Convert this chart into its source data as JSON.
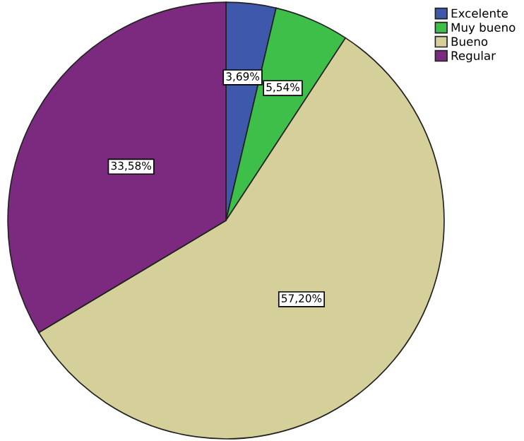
{
  "chart_data": {
    "type": "pie",
    "categories": [
      "Excelente",
      "Muy bueno",
      "Bueno",
      "Regular"
    ],
    "values": [
      3.69,
      5.54,
      57.2,
      33.58
    ],
    "colors": [
      "#3e58ac",
      "#3dbf4a",
      "#d5cf9a",
      "#7b2a80"
    ],
    "value_labels": [
      "3,69%",
      "5,54%",
      "57,20%",
      "33,58%"
    ],
    "legend": "top right"
  }
}
